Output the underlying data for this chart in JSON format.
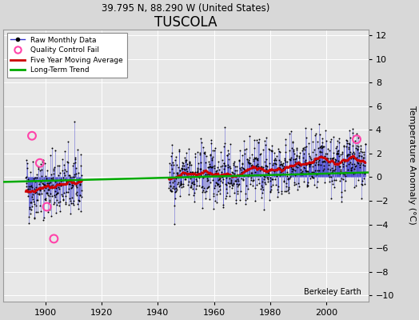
{
  "title": "TUSCOLA",
  "subtitle": "39.795 N, 88.290 W (United States)",
  "ylabel": "Temperature Anomaly (°C)",
  "credit": "Berkeley Earth",
  "ylim": [
    -10.5,
    12.5
  ],
  "yticks": [
    -10,
    -8,
    -6,
    -4,
    -2,
    0,
    2,
    4,
    6,
    8,
    10,
    12
  ],
  "xlim": [
    1885,
    2015
  ],
  "xticks": [
    1900,
    1920,
    1940,
    1960,
    1980,
    2000
  ],
  "seed": 42,
  "bg_color": "#d8d8d8",
  "plot_bg_color": "#e8e8e8",
  "raw_line_color": "#3333cc",
  "raw_dot_color": "#000000",
  "moving_avg_color": "#cc0000",
  "trend_color": "#00aa00",
  "qc_fail_color": "#ff44aa",
  "grid_color": "#ffffff",
  "title_fontsize": 12,
  "subtitle_fontsize": 8.5,
  "label_fontsize": 8,
  "tick_fontsize": 8,
  "figwidth": 5.24,
  "figheight": 4.0,
  "dpi": 100
}
